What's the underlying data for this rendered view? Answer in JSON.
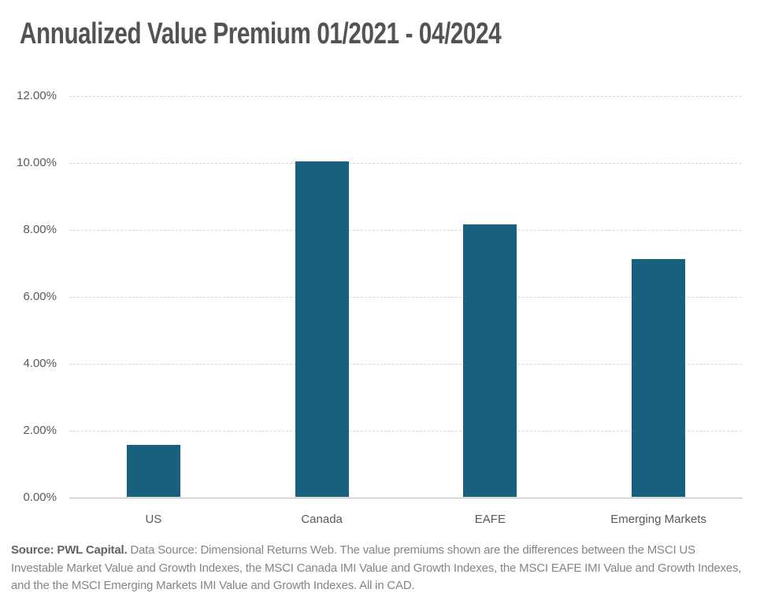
{
  "title": "Annualized Value Premium 01/2021 - 04/2024",
  "chart_data": {
    "type": "bar",
    "title": "Annualized Value Premium 01/2021 - 04/2024",
    "categories": [
      "US",
      "Canada",
      "EAFE",
      "Emerging Markets"
    ],
    "values": [
      1.55,
      10.02,
      8.14,
      7.1
    ],
    "xlabel": "",
    "ylabel": "",
    "ylim": [
      0,
      12
    ],
    "ytick_step": 2,
    "ytick_labels": [
      "0.00%",
      "2.00%",
      "4.00%",
      "6.00%",
      "8.00%",
      "10.00%",
      "12.00%"
    ],
    "grid": "horizontal-dashed",
    "legend_position": "none",
    "bar_color": "#17617E"
  },
  "footer": {
    "source_bold": "Source: PWL Capital.",
    "source_rest": " Data Source: Dimensional Returns Web. The value premiums shown are the differences between the MSCI US Investable Market Value and Growth Indexes, the MSCI Canada IMI Value and Growth Indexes, the MSCI EAFE IMI Value and Growth Indexes, and the the MSCI Emerging Markets IMI Value and Growth Indexes. All in CAD."
  },
  "colors": {
    "bar": "#17617E",
    "title_text": "#535353",
    "axis_text": "#595959",
    "gridline": "#d6d6d6",
    "axis_line": "#b9b9b9",
    "footer_text": "#858585",
    "footer_bold": "#636363"
  }
}
